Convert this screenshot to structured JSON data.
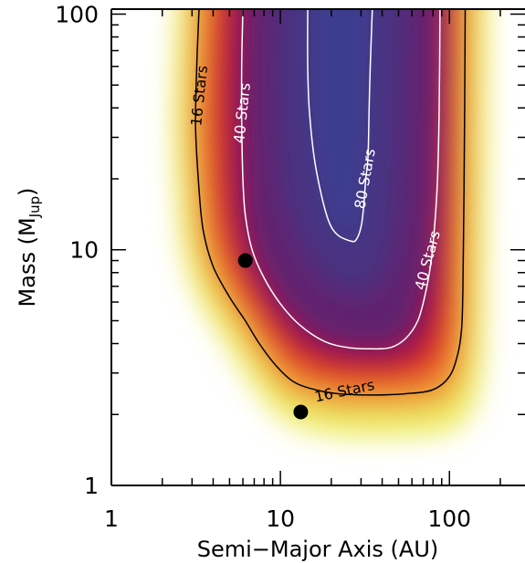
{
  "chart_data": {
    "type": "heatmap",
    "title": "",
    "xlabel": "Semi−Major Axis (AU)",
    "ylabel": {
      "main": "Mass (M",
      "sub": "Jup",
      "close": ")"
    },
    "x_scale": "log",
    "y_scale": "log",
    "xlim": [
      1,
      280
    ],
    "ylim": [
      1,
      105
    ],
    "x_ticks": [
      {
        "value": 1,
        "label": "1"
      },
      {
        "value": 10,
        "label": "10"
      },
      {
        "value": 100,
        "label": "100"
      }
    ],
    "y_ticks": [
      {
        "value": 1,
        "label": "1"
      },
      {
        "value": 10,
        "label": "10"
      },
      {
        "value": 100,
        "label": "100"
      }
    ],
    "colormap": [
      "#ffffff",
      "#f0f070",
      "#e8c040",
      "#f08030",
      "#e03020",
      "#a01040",
      "#602070",
      "#483080",
      "#3c3c90"
    ],
    "contours": [
      {
        "label": "16 Stars",
        "color": "#000000",
        "points": [
          [
            3.3,
            105
          ],
          [
            3.2,
            60
          ],
          [
            3.15,
            33
          ],
          [
            3.3,
            18
          ],
          [
            3.5,
            12
          ],
          [
            4.0,
            8.5
          ],
          [
            5.0,
            6.3
          ],
          [
            6.2,
            5.0
          ],
          [
            7.5,
            4.0
          ],
          [
            9.5,
            3.2
          ],
          [
            12,
            2.75
          ],
          [
            16,
            2.55
          ],
          [
            22,
            2.45
          ],
          [
            35,
            2.42
          ],
          [
            55,
            2.45
          ],
          [
            80,
            2.55
          ],
          [
            100,
            2.9
          ],
          [
            112,
            3.6
          ],
          [
            118,
            4.6
          ],
          [
            120,
            6.5
          ],
          [
            121,
            10
          ],
          [
            122,
            18
          ],
          [
            123,
            40
          ],
          [
            124,
            105
          ]
        ],
        "label_at": [
          24,
          2.5
        ],
        "label_angle": -12,
        "label_at_2": [
          3.35,
          45
        ],
        "label_angle_2": -84
      },
      {
        "label": "40 Stars",
        "color": "#ffffff",
        "points": [
          [
            6.0,
            105
          ],
          [
            5.9,
            60
          ],
          [
            5.9,
            35
          ],
          [
            6.0,
            20
          ],
          [
            6.2,
            14
          ],
          [
            6.8,
            10
          ],
          [
            8.0,
            7.6
          ],
          [
            10,
            5.9
          ],
          [
            13,
            4.8
          ],
          [
            18,
            4.1
          ],
          [
            25,
            3.85
          ],
          [
            35,
            3.8
          ],
          [
            45,
            3.85
          ],
          [
            55,
            4.2
          ],
          [
            65,
            5.0
          ],
          [
            72,
            6.5
          ],
          [
            78,
            9.0
          ],
          [
            82,
            13
          ],
          [
            85,
            20
          ],
          [
            87,
            40
          ],
          [
            88,
            105
          ]
        ],
        "label_at": [
          6.0,
          38
        ],
        "label_angle": -84,
        "label_at_2": [
          75,
          9
        ],
        "label_angle_2": -75
      },
      {
        "label": "80 Stars",
        "color": "#ffffff",
        "points": [
          [
            14.5,
            105
          ],
          [
            14.5,
            60
          ],
          [
            14.8,
            40
          ],
          [
            15.8,
            25
          ],
          [
            17.5,
            17
          ],
          [
            19.5,
            13
          ],
          [
            22,
            11.5
          ],
          [
            26,
            10.9
          ],
          [
            28,
            11
          ],
          [
            30,
            12.5
          ],
          [
            31,
            15
          ],
          [
            32,
            20
          ],
          [
            33,
            25
          ],
          [
            33.5,
            40
          ],
          [
            34,
            60
          ],
          [
            35,
            105
          ]
        ],
        "label_at": [
          32,
          20
        ],
        "label_angle": -80
      }
    ],
    "points": [
      {
        "x": 6.2,
        "y": 9.0
      },
      {
        "x": 13.2,
        "y": 2.05
      }
    ]
  }
}
